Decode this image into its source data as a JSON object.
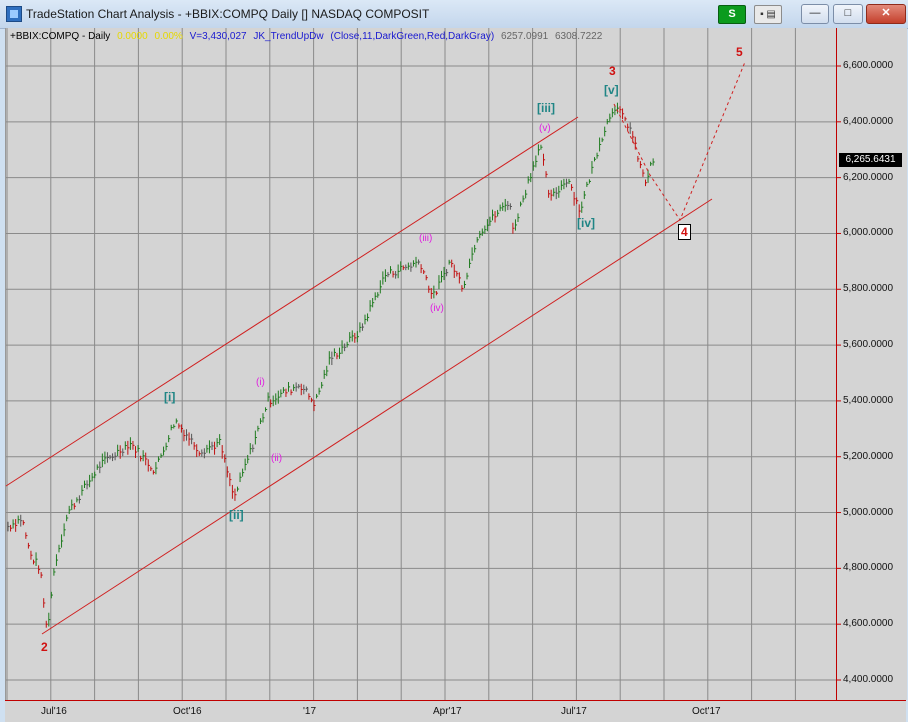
{
  "window": {
    "title": "TradeStation Chart Analysis - +BBIX:COMPQ Daily [] NASDAQ COMPOSIT",
    "s_button_label": "S",
    "controls_label": "▪ ▤",
    "minimize": "—",
    "maximize": "□",
    "close": "✕"
  },
  "header": {
    "symbol": "+BBIX:COMPQ - Daily",
    "change1": "0.0000",
    "change2": "0.00%",
    "volume": "V=3,430,027",
    "indicator": "JK_TrendUpDw",
    "indicator_params": "(Close,11,DarkGreen,Red,DarkGray)",
    "value1": "6257.0991",
    "value2": "6308.7222"
  },
  "price_axis": {
    "labels": [
      "6,600.0000",
      "6,400.0000",
      "6,200.0000",
      "6,000.0000",
      "5,800.0000",
      "5,600.0000",
      "5,400.0000",
      "5,200.0000",
      "5,000.0000",
      "4,800.0000",
      "4,600.0000",
      "4,400.0000"
    ],
    "last_price": "6,265.6431"
  },
  "time_axis": {
    "labels": [
      "Jul'16",
      "Oct'16",
      "'17",
      "Apr'17",
      "Jul'17",
      "Oct'17"
    ]
  },
  "annotations": {
    "wave_2": "2",
    "wave_3": "3",
    "wave_4": "4",
    "wave_5": "5",
    "wave_i_big": "[i]",
    "wave_ii_big": "[ii]",
    "wave_iii_big": "[iii]",
    "wave_iv_big": "[iv]",
    "wave_v_big": "[v]",
    "wave_i": "(i)",
    "wave_ii": "(ii)",
    "wave_iii": "(iii)",
    "wave_iv": "(iv)",
    "wave_v": "(v)"
  },
  "colors": {
    "up_bar": "#1e7a1e",
    "down_bar": "#c01010",
    "neutral_bar": "#555555",
    "channel": "#d02020",
    "grid": "#8a8a8a",
    "teal_label": "#1f8585",
    "magenta_label": "#e020e0"
  }
}
